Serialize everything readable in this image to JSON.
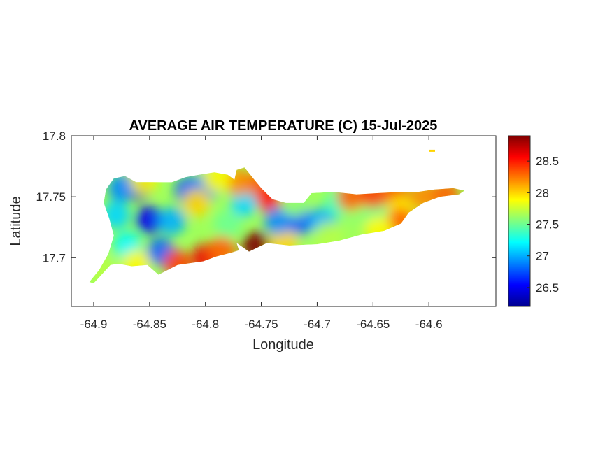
{
  "chart_data": {
    "type": "heatmap",
    "title": "AVERAGE AIR TEMPERATURE (C) 15-Jul-2025",
    "xlabel": "Longitude",
    "ylabel": "Latitude",
    "xlim": [
      -64.92,
      -64.54
    ],
    "ylim": [
      17.66,
      17.8
    ],
    "x_ticks": [
      -64.9,
      -64.85,
      -64.8,
      -64.75,
      -64.7,
      -64.65,
      -64.6
    ],
    "x_tick_labels": [
      "-64.9",
      "-64.85",
      "-64.8",
      "-64.75",
      "-64.7",
      "-64.65",
      "-64.6"
    ],
    "y_ticks": [
      17.7,
      17.75,
      17.8
    ],
    "y_tick_labels": [
      "17.7",
      "17.75",
      "17.8"
    ],
    "colorbar": {
      "range": [
        26.2,
        28.9
      ],
      "ticks": [
        26.5,
        27,
        27.5,
        28,
        28.5
      ],
      "tick_labels": [
        "26.5",
        "27",
        "27.5",
        "28",
        "28.5"
      ],
      "colormap": "jet"
    },
    "island_outline": [
      [
        -64.9,
        17.679
      ],
      [
        -64.893,
        17.686
      ],
      [
        -64.885,
        17.694
      ],
      [
        -64.878,
        17.695
      ],
      [
        -64.866,
        17.693
      ],
      [
        -64.852,
        17.694
      ],
      [
        -64.842,
        17.686
      ],
      [
        -64.825,
        17.694
      ],
      [
        -64.802,
        17.697
      ],
      [
        -64.79,
        17.701
      ],
      [
        -64.777,
        17.704
      ],
      [
        -64.77,
        17.706
      ],
      [
        -64.772,
        17.712
      ],
      [
        -64.761,
        17.705
      ],
      [
        -64.745,
        17.712
      ],
      [
        -64.725,
        17.71
      ],
      [
        -64.7,
        17.711
      ],
      [
        -64.68,
        17.714
      ],
      [
        -64.66,
        17.719
      ],
      [
        -64.64,
        17.722
      ],
      [
        -64.625,
        17.728
      ],
      [
        -64.618,
        17.737
      ],
      [
        -64.605,
        17.745
      ],
      [
        -64.59,
        17.75
      ],
      [
        -64.573,
        17.752
      ],
      [
        -64.568,
        17.755
      ],
      [
        -64.578,
        17.757
      ],
      [
        -64.595,
        17.756
      ],
      [
        -64.61,
        17.754
      ],
      [
        -64.625,
        17.754
      ],
      [
        -64.645,
        17.753
      ],
      [
        -64.665,
        17.752
      ],
      [
        -64.685,
        17.754
      ],
      [
        -64.705,
        17.753
      ],
      [
        -64.712,
        17.745
      ],
      [
        -64.728,
        17.745
      ],
      [
        -64.74,
        17.748
      ],
      [
        -64.75,
        17.757
      ],
      [
        -64.758,
        17.766
      ],
      [
        -64.765,
        17.774
      ],
      [
        -64.772,
        17.772
      ],
      [
        -64.774,
        17.764
      ],
      [
        -64.78,
        17.768
      ],
      [
        -64.792,
        17.77
      ],
      [
        -64.806,
        17.768
      ],
      [
        -64.818,
        17.766
      ],
      [
        -64.83,
        17.762
      ],
      [
        -64.845,
        17.762
      ],
      [
        -64.862,
        17.762
      ],
      [
        -64.872,
        17.767
      ],
      [
        -64.882,
        17.765
      ],
      [
        -64.889,
        17.756
      ],
      [
        -64.891,
        17.745
      ],
      [
        -64.886,
        17.732
      ],
      [
        -64.882,
        17.718
      ],
      [
        -64.887,
        17.703
      ],
      [
        -64.895,
        17.69
      ],
      [
        -64.904,
        17.68
      ]
    ],
    "samples": [
      {
        "x": -64.86,
        "y": 17.758,
        "value": 26.3
      },
      {
        "x": -64.85,
        "y": 17.731,
        "value": 26.5
      },
      {
        "x": -64.875,
        "y": 17.757,
        "value": 26.9
      },
      {
        "x": -64.84,
        "y": 17.705,
        "value": 26.8
      },
      {
        "x": -64.815,
        "y": 17.755,
        "value": 26.8
      },
      {
        "x": -64.8,
        "y": 17.758,
        "value": 26.9
      },
      {
        "x": -64.83,
        "y": 17.73,
        "value": 27.0
      },
      {
        "x": -64.87,
        "y": 17.71,
        "value": 27.2
      },
      {
        "x": -64.88,
        "y": 17.735,
        "value": 27.1
      },
      {
        "x": -64.892,
        "y": 17.69,
        "value": 27.7
      },
      {
        "x": -64.862,
        "y": 17.695,
        "value": 27.9
      },
      {
        "x": -64.825,
        "y": 17.695,
        "value": 28.4
      },
      {
        "x": -64.8,
        "y": 17.7,
        "value": 28.6
      },
      {
        "x": -64.785,
        "y": 17.706,
        "value": 28.3
      },
      {
        "x": -64.755,
        "y": 17.71,
        "value": 28.9
      },
      {
        "x": -64.73,
        "y": 17.712,
        "value": 28.0
      },
      {
        "x": -64.78,
        "y": 17.728,
        "value": 27.5
      },
      {
        "x": -64.765,
        "y": 17.745,
        "value": 27.1
      },
      {
        "x": -64.77,
        "y": 17.762,
        "value": 28.2
      },
      {
        "x": -64.79,
        "y": 17.765,
        "value": 27.9
      },
      {
        "x": -64.808,
        "y": 17.745,
        "value": 28.0
      },
      {
        "x": -64.75,
        "y": 17.76,
        "value": 28.3
      },
      {
        "x": -64.742,
        "y": 17.748,
        "value": 28.5
      },
      {
        "x": -64.735,
        "y": 17.73,
        "value": 26.9
      },
      {
        "x": -64.715,
        "y": 17.73,
        "value": 26.8
      },
      {
        "x": -64.695,
        "y": 17.73,
        "value": 27.0
      },
      {
        "x": -64.72,
        "y": 17.745,
        "value": 27.6
      },
      {
        "x": -64.68,
        "y": 17.745,
        "value": 27.4
      },
      {
        "x": -64.69,
        "y": 17.718,
        "value": 27.7
      },
      {
        "x": -64.665,
        "y": 17.738,
        "value": 27.6
      },
      {
        "x": -64.645,
        "y": 17.737,
        "value": 27.5
      },
      {
        "x": -64.67,
        "y": 17.75,
        "value": 28.3
      },
      {
        "x": -64.65,
        "y": 17.752,
        "value": 28.4
      },
      {
        "x": -64.63,
        "y": 17.752,
        "value": 28.3
      },
      {
        "x": -64.625,
        "y": 17.738,
        "value": 27.9
      },
      {
        "x": -64.625,
        "y": 17.73,
        "value": 28.3
      },
      {
        "x": -64.605,
        "y": 17.75,
        "value": 28.2
      },
      {
        "x": -64.585,
        "y": 17.752,
        "value": 28.3
      },
      {
        "x": -64.645,
        "y": 17.723,
        "value": 27.9
      },
      {
        "x": -64.855,
        "y": 17.763,
        "value": 27.9
      }
    ],
    "offshore_marks": [
      {
        "x": -64.597,
        "y": 17.788,
        "value": 28.0
      }
    ]
  }
}
